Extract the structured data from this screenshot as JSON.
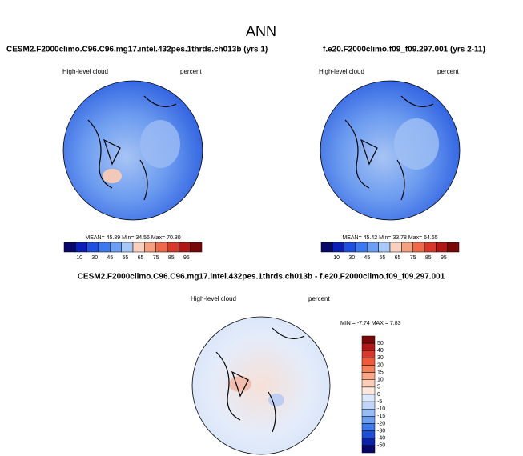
{
  "title": "ANN",
  "panels": [
    {
      "title": "CESM2.F2000climo.C96.C96.mg17.intel.432pes.1thrds.ch013b (yrs 1)",
      "variable": "High-level cloud",
      "units": "percent",
      "stats": "MEAN= 45.89  Min= 34.56  Max= 70.30"
    },
    {
      "title": "f.e20.F2000climo.f09_f09.297.001 (yrs 2-11)",
      "variable": "High-level cloud",
      "units": "percent",
      "stats": "MEAN= 45.42  Min= 33.78  Max= 64.65"
    }
  ],
  "diff": {
    "title": "CESM2.F2000climo.C96.C96.mg17.intel.432pes.1thrds.ch013b - f.e20.F2000climo.f09_f09.297.001",
    "variable": "High-level cloud",
    "units": "percent",
    "stats": "MIN = -7.74 MAX =  7.83"
  },
  "colorbar": {
    "labels": [
      10,
      30,
      45,
      55,
      65,
      75,
      85,
      95
    ],
    "colors": [
      "#08086b",
      "#0a1fb8",
      "#1f4fe0",
      "#3c78f0",
      "#6c9ef5",
      "#a8c8f8",
      "#f8d0c0",
      "#f5a080",
      "#ee6a4a",
      "#d8382a",
      "#b01818",
      "#780808"
    ]
  },
  "diff_colorbar": {
    "labels": [
      50,
      40,
      30,
      20,
      15,
      10,
      5,
      0,
      -5,
      -10,
      -15,
      -20,
      -30,
      -40,
      -50
    ],
    "colors": [
      "#7a0a0a",
      "#b01818",
      "#d8382a",
      "#ee5a3a",
      "#f5805a",
      "#f8a888",
      "#fbcdb8",
      "#fde6dc",
      "#dde9fb",
      "#c0d6f8",
      "#98bcf4",
      "#6c9ef0",
      "#3c78e8",
      "#1f4fd8",
      "#0a22a8",
      "#08086b"
    ]
  }
}
